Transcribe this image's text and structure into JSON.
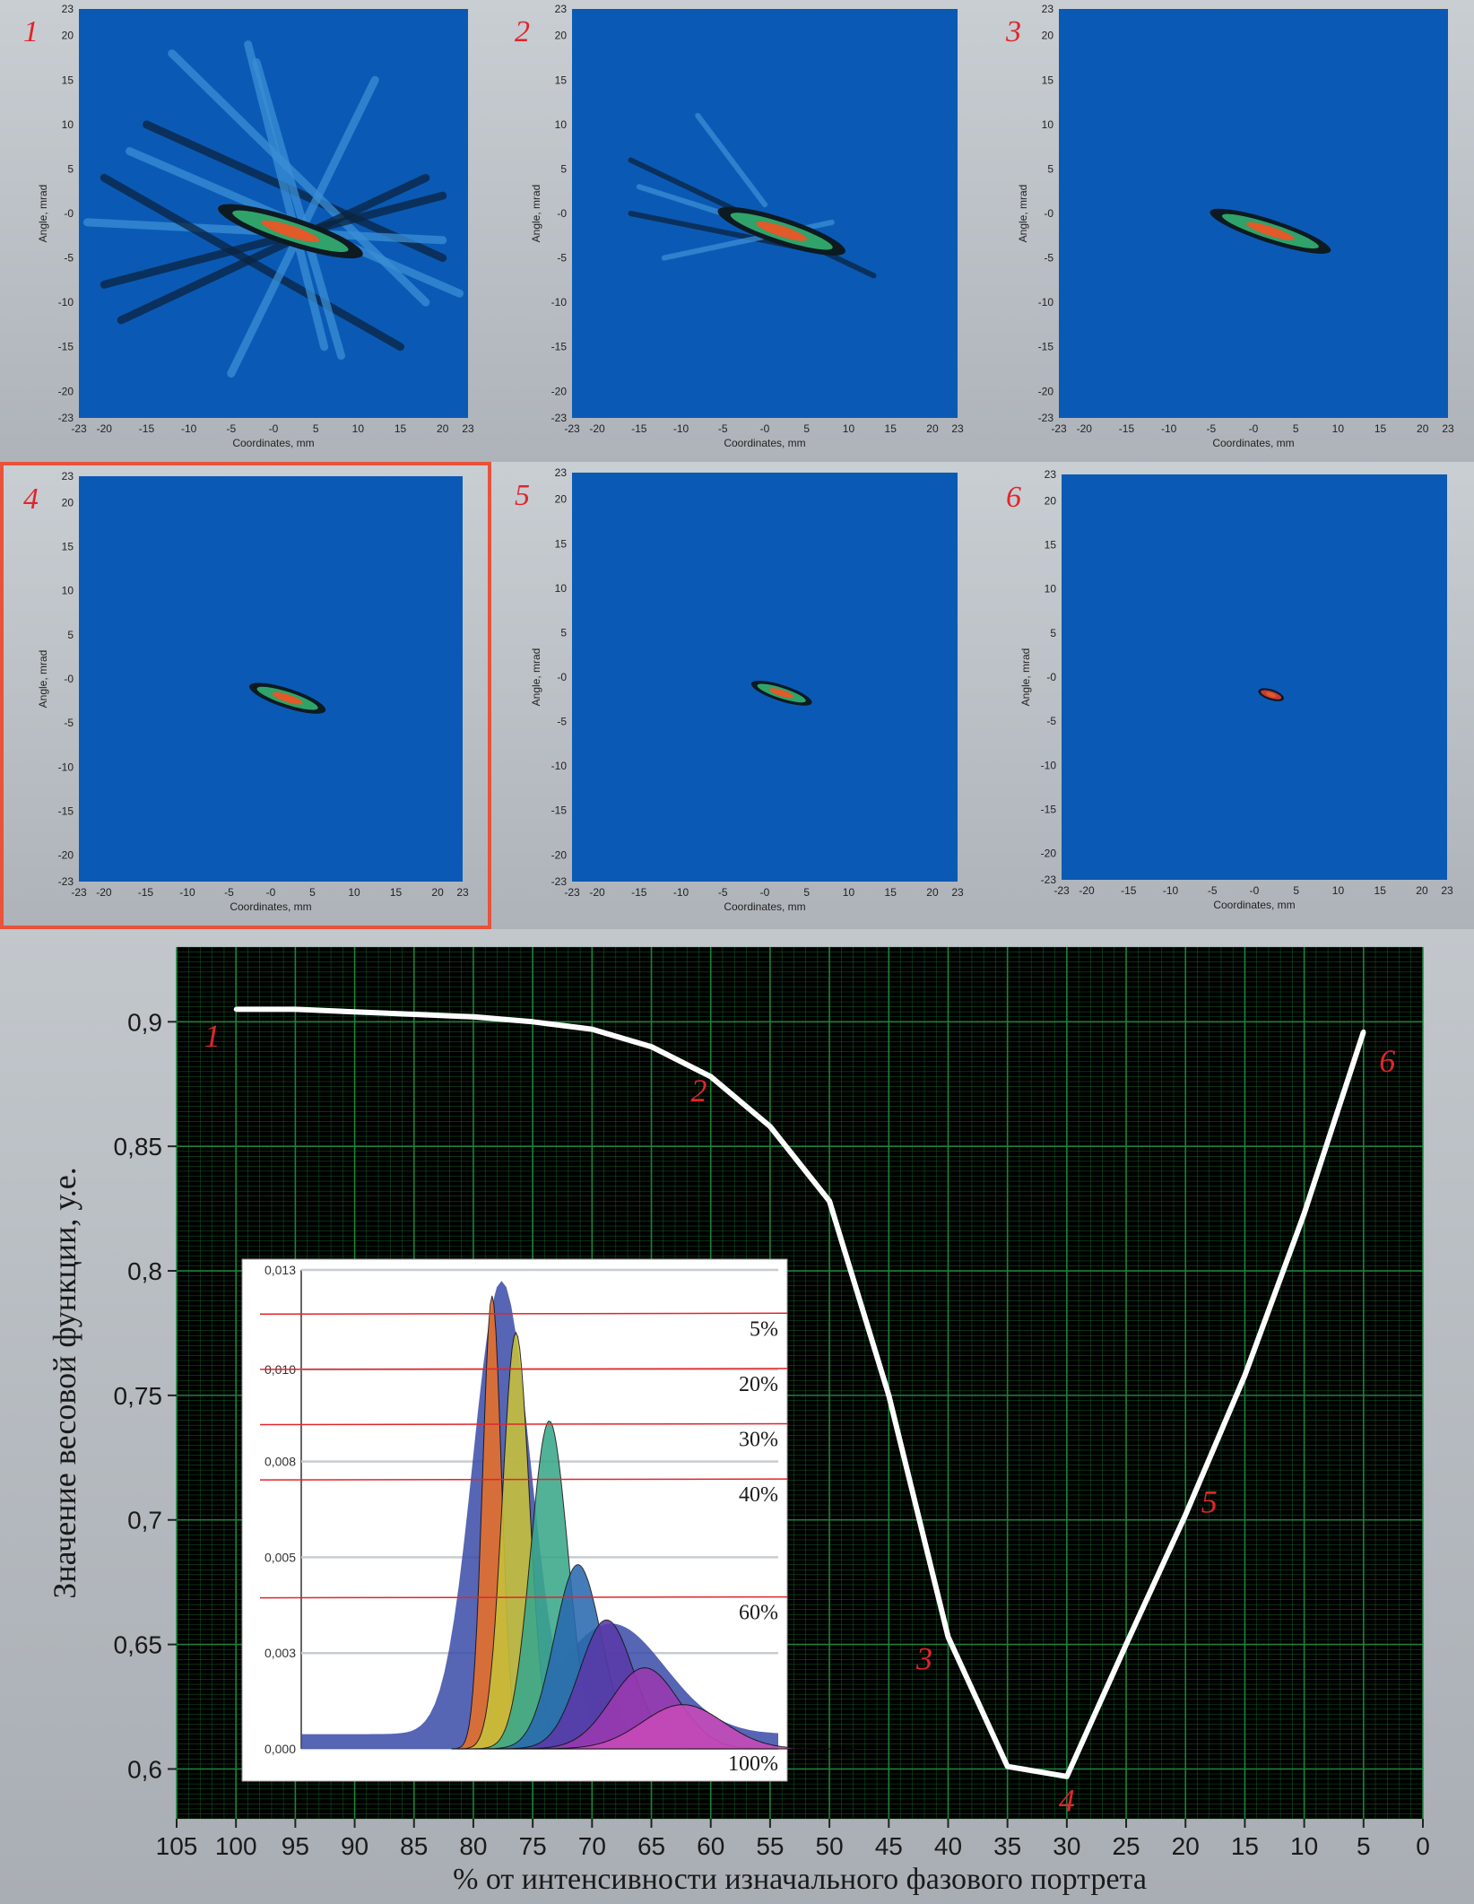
{
  "colors": {
    "plot_bg": "#0a5ab5",
    "grid": "#1e8a3c",
    "curve": "#ffffff",
    "label_red": "#e0262b",
    "panel_border": "#e8533a"
  },
  "phase_panels": {
    "x_label": "Coordinates, mm",
    "y_label": "Angle, mrad",
    "x_ticks": [
      "-23",
      "-20",
      "-15",
      "-10",
      "-5",
      "-0",
      "5",
      "10",
      "15",
      "20",
      "23"
    ],
    "y_ticks": [
      "23",
      "20",
      "15",
      "10",
      "5",
      "-0",
      "-5",
      "-10",
      "-15",
      "-20",
      "-23"
    ],
    "panels": [
      {
        "number": "1",
        "selected": false
      },
      {
        "number": "2",
        "selected": false
      },
      {
        "number": "3",
        "selected": false
      },
      {
        "number": "4",
        "selected": true
      },
      {
        "number": "5",
        "selected": false
      },
      {
        "number": "6",
        "selected": false
      }
    ]
  },
  "chart_data": {
    "type": "line",
    "title": "",
    "xlabel": "% от интенсивности изначального фазового портрета",
    "ylabel": "Значение весовой функции, у.е.",
    "xlim": [
      105,
      0
    ],
    "ylim": [
      0.58,
      0.93
    ],
    "x_ticks": [
      "105",
      "100",
      "95",
      "90",
      "85",
      "80",
      "75",
      "70",
      "65",
      "60",
      "55",
      "50",
      "45",
      "40",
      "35",
      "30",
      "25",
      "20",
      "15",
      "10",
      "5",
      "0"
    ],
    "y_ticks": [
      "0,9",
      "0,85",
      "0,8",
      "0,75",
      "0,7",
      "0,65",
      "0,6"
    ],
    "series": [
      {
        "x": [
          100,
          95,
          90,
          85,
          80,
          75,
          70,
          65,
          60,
          55,
          50,
          45,
          40,
          35,
          30,
          25,
          20,
          15,
          10,
          5
        ],
        "y": [
          0.905,
          0.905,
          0.904,
          0.903,
          0.902,
          0.9,
          0.897,
          0.89,
          0.878,
          0.858,
          0.828,
          0.75,
          0.653,
          0.601,
          0.597,
          0.65,
          0.702,
          0.758,
          0.823,
          0.896
        ]
      }
    ],
    "point_labels": [
      {
        "text": "1",
        "x": 102,
        "y": 0.89
      },
      {
        "text": "2",
        "x": 61,
        "y": 0.868
      },
      {
        "text": "3",
        "x": 42,
        "y": 0.64
      },
      {
        "text": "4",
        "x": 30,
        "y": 0.583
      },
      {
        "text": "5",
        "x": 18,
        "y": 0.703
      },
      {
        "text": "6",
        "x": 3,
        "y": 0.88
      }
    ],
    "grid": true
  },
  "inset": {
    "y_ticks": [
      "0,013",
      "0,010",
      "0,008",
      "0,005",
      "0,003",
      "0,000"
    ],
    "level_labels": [
      "5%",
      "20%",
      "30%",
      "40%",
      "60%",
      "100%"
    ],
    "level_values": [
      0.0118,
      0.0103,
      0.0088,
      0.0073,
      0.0041,
      0.0
    ]
  }
}
